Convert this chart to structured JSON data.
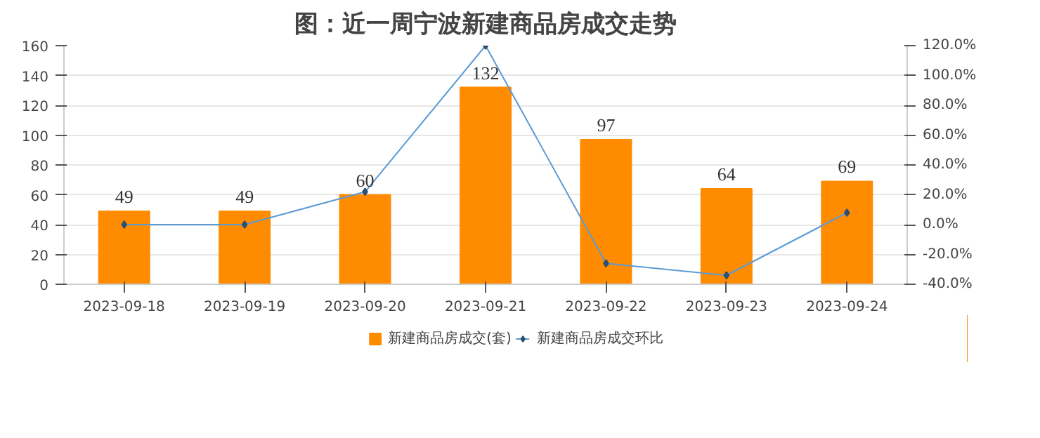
{
  "chart_data": {
    "type": "bar",
    "title": "图：近一周宁波新建商品房成交走势",
    "categories": [
      "2023-09-18",
      "2023-09-19",
      "2023-09-20",
      "2023-09-21",
      "2023-09-22",
      "2023-09-23",
      "2023-09-24"
    ],
    "series": [
      {
        "name": "新建商品房成交(套)",
        "color": "#ff8c00",
        "values": [
          49,
          49,
          60,
          132,
          97,
          64,
          69
        ],
        "data_labels": true
      },
      {
        "name": "新建商品房成交环比",
        "type": "line",
        "axis": "y2",
        "color": "#5b9bd5",
        "marker": "diamond",
        "values": [
          0,
          0,
          22,
          120,
          -26,
          -34,
          8
        ]
      }
    ],
    "ylim": [
      0,
      160
    ],
    "yticks": [
      0,
      20,
      40,
      60,
      80,
      100,
      120,
      140,
      160
    ],
    "y2lim": [
      -40,
      120
    ],
    "y2ticks": [
      {
        "value": -40,
        "label": "-40.0%"
      },
      {
        "value": -20,
        "label": "-20.0%"
      },
      {
        "value": 0,
        "label": "0.0%"
      },
      {
        "value": 20,
        "label": "20.0%"
      },
      {
        "value": 40,
        "label": "40.0%"
      },
      {
        "value": 60,
        "label": "60.0%"
      },
      {
        "value": 80,
        "label": "80.0%"
      },
      {
        "value": 100,
        "label": "100.0%"
      },
      {
        "value": 120,
        "label": "120.0%"
      }
    ],
    "grid": "y",
    "legend": "bottom"
  }
}
